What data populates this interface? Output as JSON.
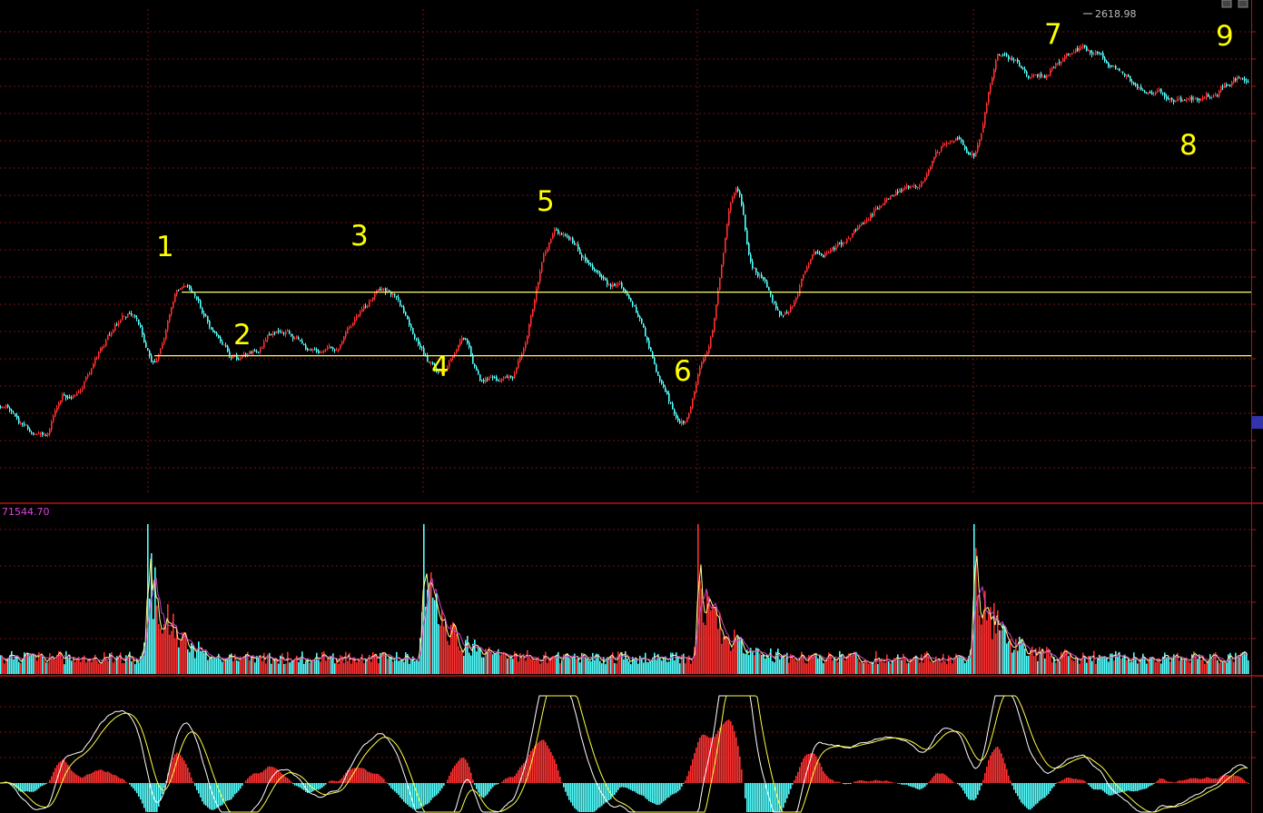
{
  "chart_data": {
    "type": "candlestick",
    "colors": {
      "background": "#000000",
      "grid": "#7a1010",
      "up": "#ff3030",
      "down": "#54ffff",
      "level_line": "#ffff66",
      "label": "#ffff00",
      "volume_ma_fast": "#ffff88",
      "volume_ma_slow": "#cc44cc",
      "macd_dif": "#ffffff",
      "macd_dea": "#ffff44",
      "panel_border": "#c01010",
      "axis_text": "#bbbbbb",
      "volume_text": "#e040e0",
      "badge": "#3333aa"
    },
    "price_panel": {
      "high_label": "2618.98",
      "wave_labels": [
        "1",
        "2",
        "3",
        "4",
        "5",
        "6",
        "7",
        "8",
        "9"
      ],
      "price_anchors": [
        {
          "t": 0,
          "p": 2360
        },
        {
          "t": 45,
          "p": 2332
        },
        {
          "t": 70,
          "p": 2370
        },
        {
          "t": 145,
          "p": 2440
        },
        {
          "t": 168,
          "p": 2400
        },
        {
          "t": 198,
          "p": 2460
        },
        {
          "t": 265,
          "p": 2400
        },
        {
          "t": 305,
          "p": 2425
        },
        {
          "t": 355,
          "p": 2405
        },
        {
          "t": 425,
          "p": 2458
        },
        {
          "t": 485,
          "p": 2390
        },
        {
          "t": 510,
          "p": 2420
        },
        {
          "t": 530,
          "p": 2383
        },
        {
          "t": 560,
          "p": 2385
        },
        {
          "t": 612,
          "p": 2508
        },
        {
          "t": 680,
          "p": 2462
        },
        {
          "t": 752,
          "p": 2350
        },
        {
          "t": 775,
          "p": 2400
        },
        {
          "t": 810,
          "p": 2545
        },
        {
          "t": 830,
          "p": 2475
        },
        {
          "t": 862,
          "p": 2438
        },
        {
          "t": 900,
          "p": 2490
        },
        {
          "t": 1000,
          "p": 2545
        },
        {
          "t": 1050,
          "p": 2590
        },
        {
          "t": 1072,
          "p": 2575
        },
        {
          "t": 1100,
          "p": 2658
        },
        {
          "t": 1140,
          "p": 2640
        },
        {
          "t": 1190,
          "p": 2665
        },
        {
          "t": 1272,
          "p": 2628
        },
        {
          "t": 1305,
          "p": 2618.98
        },
        {
          "t": 1375,
          "p": 2640
        }
      ],
      "level_lines": [
        {
          "price": 2458,
          "t_start": 200,
          "t_end": 1378
        },
        {
          "price": 2404,
          "t_start": 170,
          "t_end": 1378
        }
      ]
    },
    "volume_panel": {
      "max_label": "71544.70",
      "spike_times": [
        162,
        466,
        768,
        1072
      ]
    },
    "macd_panel": {
      "bar_values": []
    }
  }
}
